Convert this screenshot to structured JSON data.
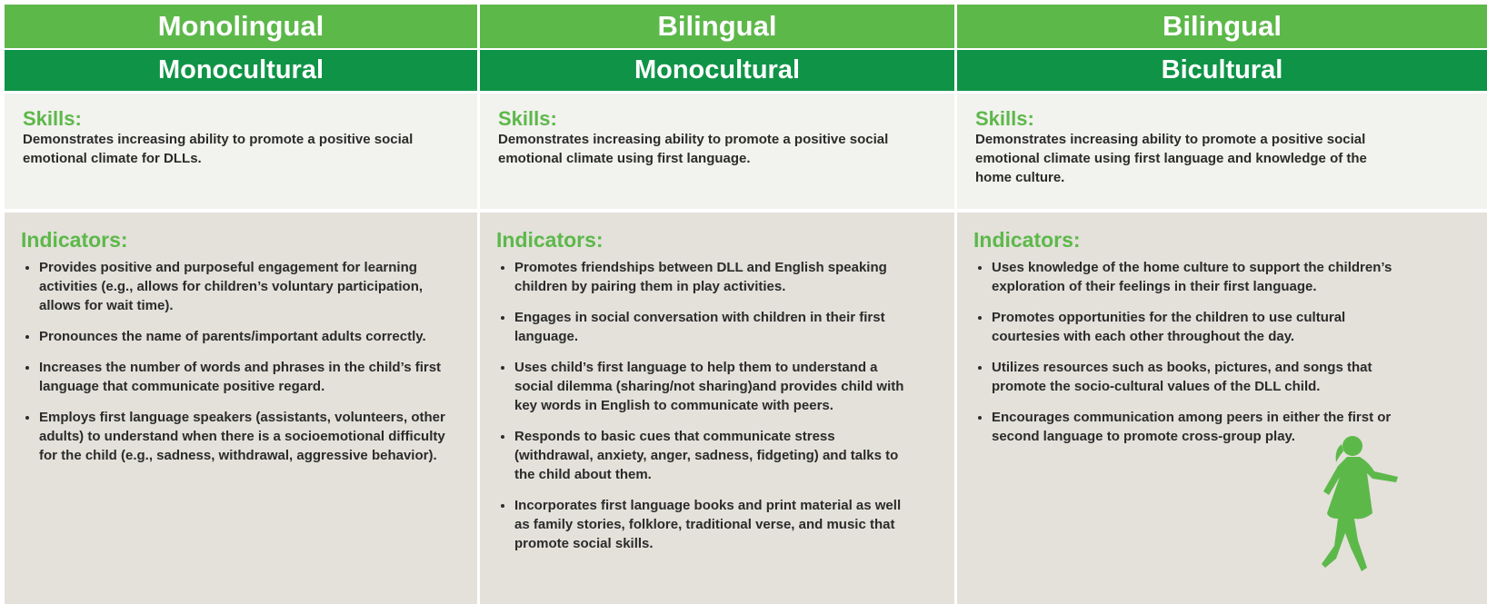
{
  "columns": [
    {
      "title": "Monolingual",
      "subtitle": "Monocultural",
      "skills_label": "Skills:",
      "skills": "Demonstrates increasing ability to promote a positive social emotional climate for DLLs.",
      "indicators_label": "Indicators:",
      "indicators": [
        "Provides positive and purposeful engagement for learning activities (e.g., allows for children’s voluntary participation, allows for wait time).",
        "Pronounces the name of parents/important adults correctly.",
        "Increases the number of words and phrases in the child’s first language that communicate positive regard.",
        "Employs first language speakers (assistants, volunteers, other adults) to understand when there is a socioemotional difficulty for the child (e.g., sadness, withdrawal, aggressive behavior)."
      ]
    },
    {
      "title": "Bilingual",
      "subtitle": "Monocultural",
      "skills_label": "Skills:",
      "skills": "Demonstrates increasing ability to promote a positive social emotional climate using first language.",
      "indicators_label": "Indicators:",
      "indicators": [
        "Promotes friendships between DLL and English speaking children by pairing them in play activities.",
        "Engages in social conversation with children in their first language.",
        "Uses child’s first language to help them to understand a social dilemma (sharing/not sharing)and provides child with key words in English to communicate with peers.",
        "Responds to basic cues that communicate stress (withdrawal, anxiety, anger, sadness, fidgeting) and talks to the child about them.",
        "Incorporates first language books and print material as well as family stories, folklore, traditional verse, and music that promote social skills."
      ]
    },
    {
      "title": "Bilingual",
      "subtitle": "Bicultural",
      "skills_label": "Skills:",
      "skills": "Demonstrates increasing ability to promote a positive social emotional climate using first language and knowledge of the home culture.",
      "indicators_label": "Indicators:",
      "indicators": [
        "Uses knowledge of the home culture to support the children’s exploration of their feelings in their first language.",
        "Promotes opportunities for the children to use cultural courtesies with each other throughout the day.",
        "Utilizes resources such as books, pictures, and songs that promote the socio-cultural values of the DLL child.",
        "Encourages communication among peers in either the first or second language to promote cross-group play."
      ]
    }
  ]
}
